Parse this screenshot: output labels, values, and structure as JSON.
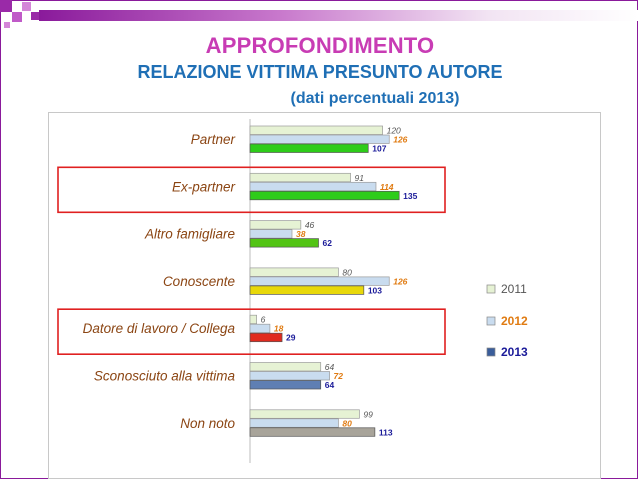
{
  "title": "APPROFONDIMENTO",
  "subtitle": "RELAZIONE VITTIMA PRESUNTO AUTORE",
  "subtitle2": "(dati percentuali 2013)",
  "colors": {
    "title": "#c83cb4",
    "subtitle": "#1f6fb5",
    "category_label": "#8b4513",
    "series_2011": "#e6f2d4",
    "series_2012": "#c9dcef",
    "label_2011": "#555555",
    "label_2012": "#e07b12",
    "label_2013": "#1a1a99",
    "highlight": "#e02020"
  },
  "chart_data": {
    "type": "bar",
    "orientation": "horizontal",
    "categories": [
      "Partner",
      "Ex-partner",
      "Altro famigliare",
      "Conoscente",
      "Datore di lavoro / Collega",
      "Sconosciuto alla vittima",
      "Non noto"
    ],
    "series": [
      {
        "name": "2011",
        "values": [
          120,
          91,
          46,
          80,
          6,
          64,
          99
        ]
      },
      {
        "name": "2012",
        "values": [
          126,
          114,
          38,
          126,
          18,
          72,
          80
        ]
      },
      {
        "name": "2013",
        "values": [
          107,
          135,
          62,
          103,
          29,
          64,
          113
        ]
      }
    ],
    "bar_colors_2013": [
      "#2ecc1a",
      "#2ecc1a",
      "#52c414",
      "#e8d80a",
      "#e02a1e",
      "#5f7fb3",
      "#a8a49a"
    ],
    "highlighted_categories": [
      "Ex-partner",
      "Datore di lavoro / Collega"
    ],
    "legend_position": "right",
    "grid": false
  }
}
